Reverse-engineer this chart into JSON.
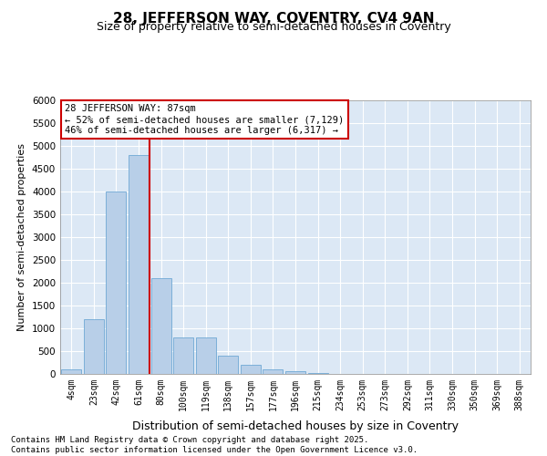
{
  "title": "28, JEFFERSON WAY, COVENTRY, CV4 9AN",
  "subtitle": "Size of property relative to semi-detached houses in Coventry",
  "xlabel": "Distribution of semi-detached houses by size in Coventry",
  "ylabel": "Number of semi-detached properties",
  "categories": [
    "4sqm",
    "23sqm",
    "42sqm",
    "61sqm",
    "80sqm",
    "100sqm",
    "119sqm",
    "138sqm",
    "157sqm",
    "177sqm",
    "196sqm",
    "215sqm",
    "234sqm",
    "253sqm",
    "273sqm",
    "292sqm",
    "311sqm",
    "330sqm",
    "350sqm",
    "369sqm",
    "388sqm"
  ],
  "values": [
    100,
    1200,
    4000,
    4800,
    2100,
    800,
    800,
    400,
    200,
    100,
    60,
    30,
    10,
    5,
    3,
    2,
    1,
    1,
    0,
    0,
    0
  ],
  "bar_color": "#b8cfe8",
  "bar_edgecolor": "#6fa8d4",
  "vline_x": 3.5,
  "vline_color": "#cc0000",
  "annotation_text": "28 JEFFERSON WAY: 87sqm\n← 52% of semi-detached houses are smaller (7,129)\n46% of semi-detached houses are larger (6,317) →",
  "ylim": [
    0,
    6000
  ],
  "yticks": [
    0,
    500,
    1000,
    1500,
    2000,
    2500,
    3000,
    3500,
    4000,
    4500,
    5000,
    5500,
    6000
  ],
  "bg_color": "#dce8f5",
  "grid_color": "white",
  "footer": "Contains HM Land Registry data © Crown copyright and database right 2025.\nContains public sector information licensed under the Open Government Licence v3.0."
}
